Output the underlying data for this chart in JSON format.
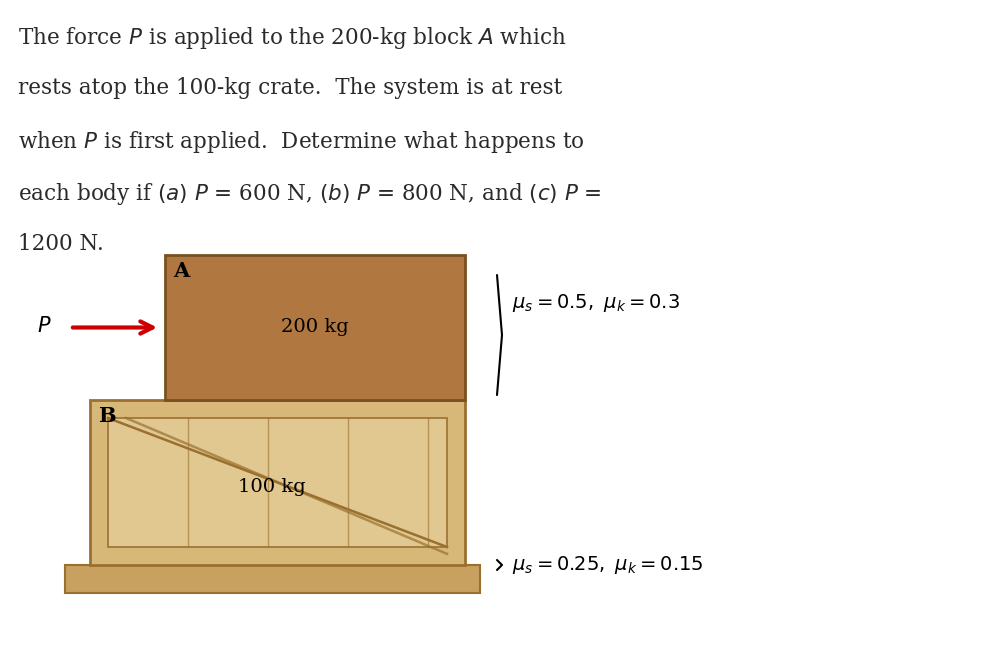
{
  "bg_color": "#ffffff",
  "text_color": "#2a2a2a",
  "block_A_color": "#b07840",
  "block_A_edge": "#7a5020",
  "crate_B_face": "#d8b878",
  "crate_B_edge": "#9a7030",
  "crate_B_inner": "#e0c890",
  "crate_lines_color": "#9a7030",
  "floor_color": "#c8a060",
  "floor_edge": "#9a7030",
  "arrow_color": "#cc0000",
  "line1": "The force $P$ is applied to the 200-kg block $A$ which",
  "line2": "rests atop the 100-kg crate.  The system is at rest",
  "line3": "when $P$ is first applied.  Determine what happens to",
  "line4": "each body if $(a)$ $P$ = 600 N, $(b)$ $P$ = 800 N, and $(c)$ $P$ =",
  "line5": "1200 N.",
  "mu_top": "$\\mu_s = 0.5,\\ \\mu_k = 0.3$",
  "mu_bot": "$\\mu_s = 0.25,\\ \\mu_k = 0.15$",
  "label_200": "200 kg",
  "label_100": "100 kg",
  "label_A": "$A$",
  "label_B": "$B$",
  "label_P": "$P$"
}
